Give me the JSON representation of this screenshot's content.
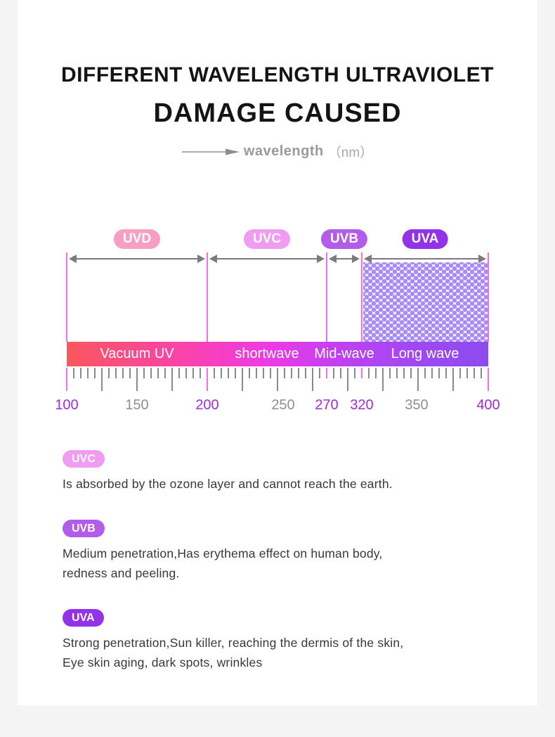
{
  "header": {
    "title_line1": "DIFFERENT WAVELENGTH ULTRAVIOLET",
    "title_line2": "DAMAGE CAUSED",
    "axis_label": "wavelength",
    "axis_unit": "（nm）"
  },
  "chart_data": {
    "type": "spectrum-diagram",
    "axis": {
      "unit": "nm",
      "min": 100,
      "max": 400,
      "labeled_ticks": [
        {
          "value": "100",
          "highlight": true
        },
        {
          "value": "150",
          "highlight": false
        },
        {
          "value": "200",
          "highlight": true
        },
        {
          "value": "250",
          "highlight": false
        },
        {
          "value": "270",
          "highlight": true
        },
        {
          "value": "320",
          "highlight": true
        },
        {
          "value": "350",
          "highlight": false
        },
        {
          "value": "400",
          "highlight": true
        }
      ]
    },
    "bands": [
      {
        "name": "UVD",
        "range_nm": [
          100,
          200
        ],
        "bar_label": "Vacuum UV",
        "pill_color": "#f79fc3",
        "hatched": false
      },
      {
        "name": "UVC",
        "range_nm": [
          200,
          270
        ],
        "bar_label": "shortwave",
        "pill_color": "#ef9cf2",
        "hatched": false
      },
      {
        "name": "UVB",
        "range_nm": [
          270,
          320
        ],
        "bar_label": "Mid-wave",
        "pill_color": "#b25ce9",
        "hatched": false
      },
      {
        "name": "UVA",
        "range_nm": [
          320,
          400
        ],
        "bar_label": "Long wave",
        "pill_color": "#9233ea",
        "hatched": true
      }
    ]
  },
  "descriptions": [
    {
      "name": "UVC",
      "pill_color": "#ef9cf2",
      "lines": [
        "Is absorbed by the ozone layer and cannot reach the earth."
      ]
    },
    {
      "name": "UVB",
      "pill_color": "#b25ce9",
      "lines": [
        "Medium penetration,Has erythema effect on human body,",
        "redness and peeling."
      ]
    },
    {
      "name": "UVA",
      "pill_color": "#9233ea",
      "lines": [
        "Strong penetration,Sun killer, reaching the dermis of the skin,",
        "Eye skin aging, dark spots, wrinkles"
      ]
    }
  ],
  "colors": {
    "boundary_line": "#f46ef0",
    "tick_gray": "#8a8a8a",
    "number_purple": "#9b2fdf",
    "number_gray": "#8f8f8f",
    "arrow_gray": "#7b7b7b",
    "dot_purple": "#a78bfa",
    "bar_text": "#ffffff",
    "bar_gradient": [
      "#f9575e",
      "#fb44a4",
      "#ef3ae3",
      "#bf40f2",
      "#9d49f2",
      "#8d4af0"
    ]
  }
}
